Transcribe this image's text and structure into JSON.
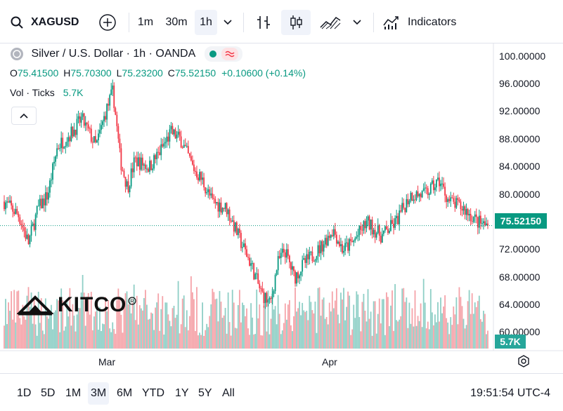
{
  "toolbar": {
    "symbol": "XAGUSD",
    "intervals": [
      "1m",
      "30m",
      "1h"
    ],
    "active_interval": "1h",
    "indicators_label": "Indicators"
  },
  "legend": {
    "title": "Silver / U.S. Dollar · 1h · OANDA",
    "o_label": "O",
    "o_value": "75.41500",
    "h_label": "H",
    "h_value": "75.70300",
    "l_label": "L",
    "l_value": "75.23200",
    "c_label": "C",
    "c_value": "75.52150",
    "change": "+0.10600 (+0.14%)",
    "vol_label": "Vol · Ticks",
    "vol_value": "5.7K"
  },
  "watermark": {
    "logo_text": "KITCO"
  },
  "price_tag": "75.52150",
  "vol_tag": "5.7K",
  "bottom": {
    "ranges": [
      "1D",
      "5D",
      "1M",
      "3M",
      "6M",
      "YTD",
      "1Y",
      "5Y",
      "All"
    ],
    "active_range": "3M",
    "clock": "19:51:54 UTC-4"
  },
  "colors": {
    "up": "#089981",
    "down": "#f23645",
    "vol_up": "#8fcfc6",
    "vol_down": "#f5a3a9"
  },
  "chart_data": {
    "type": "candlestick",
    "title": "Silver / U.S. Dollar · 1h · OANDA",
    "y_ticks": [
      "100.00000",
      "96.00000",
      "92.00000",
      "88.00000",
      "84.00000",
      "80.00000",
      "76.00000",
      "72.00000",
      "68.00000",
      "64.00000",
      "60.00000"
    ],
    "ylim": [
      57.4,
      101.9
    ],
    "x_ticks": [
      {
        "label": "Mar",
        "t": 0.215
      },
      {
        "label": "Apr",
        "t": 0.672
      }
    ],
    "last_price": 75.5215,
    "anchors": [
      [
        0.0,
        79
      ],
      [
        0.03,
        77
      ],
      [
        0.05,
        73
      ],
      [
        0.07,
        78
      ],
      [
        0.09,
        80
      ],
      [
        0.11,
        87
      ],
      [
        0.14,
        89
      ],
      [
        0.16,
        91
      ],
      [
        0.19,
        87
      ],
      [
        0.21,
        92
      ],
      [
        0.225,
        95
      ],
      [
        0.24,
        85
      ],
      [
        0.255,
        81
      ],
      [
        0.27,
        85
      ],
      [
        0.3,
        84
      ],
      [
        0.32,
        86
      ],
      [
        0.345,
        89
      ],
      [
        0.365,
        88
      ],
      [
        0.39,
        84
      ],
      [
        0.41,
        82
      ],
      [
        0.43,
        79
      ],
      [
        0.46,
        78
      ],
      [
        0.49,
        73
      ],
      [
        0.51,
        70
      ],
      [
        0.53,
        66
      ],
      [
        0.55,
        64
      ],
      [
        0.565,
        70
      ],
      [
        0.58,
        72
      ],
      [
        0.6,
        68
      ],
      [
        0.62,
        70
      ],
      [
        0.65,
        72
      ],
      [
        0.68,
        75
      ],
      [
        0.7,
        72
      ],
      [
        0.72,
        73
      ],
      [
        0.75,
        76
      ],
      [
        0.78,
        74
      ],
      [
        0.81,
        76
      ],
      [
        0.84,
        80
      ],
      [
        0.87,
        80
      ],
      [
        0.9,
        82
      ],
      [
        0.92,
        79
      ],
      [
        0.95,
        78
      ],
      [
        0.98,
        76
      ],
      [
        1.0,
        75.5
      ]
    ],
    "series_note": "Hourly candles over ~3 months, volume in ticks"
  }
}
